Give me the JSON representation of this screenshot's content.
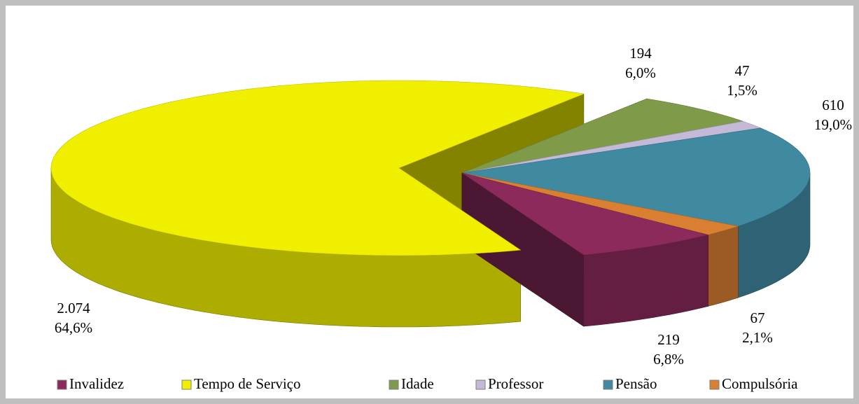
{
  "chart_data": {
    "type": "pie3d",
    "categories": [
      "Invalidez",
      "Tempo de Serviço",
      "Idade",
      "Professor",
      "Pensão",
      "Compulsória"
    ],
    "values": [
      219,
      2074,
      194,
      47,
      610,
      67
    ],
    "value_labels": [
      "219",
      "2.074",
      "194",
      "47",
      "610",
      "67"
    ],
    "percents": [
      6.8,
      64.6,
      6.0,
      1.5,
      19.0,
      2.1
    ],
    "percent_labels": [
      "6,8%",
      "64,6%",
      "6,0%",
      "1,5%",
      "19,0%",
      "2,1%"
    ],
    "colors": [
      "#8b2a5b",
      "#f0ef00",
      "#7f9a48",
      "#c5b9d8",
      "#3f8aa1",
      "#d97f32"
    ],
    "legend": "bottom"
  }
}
